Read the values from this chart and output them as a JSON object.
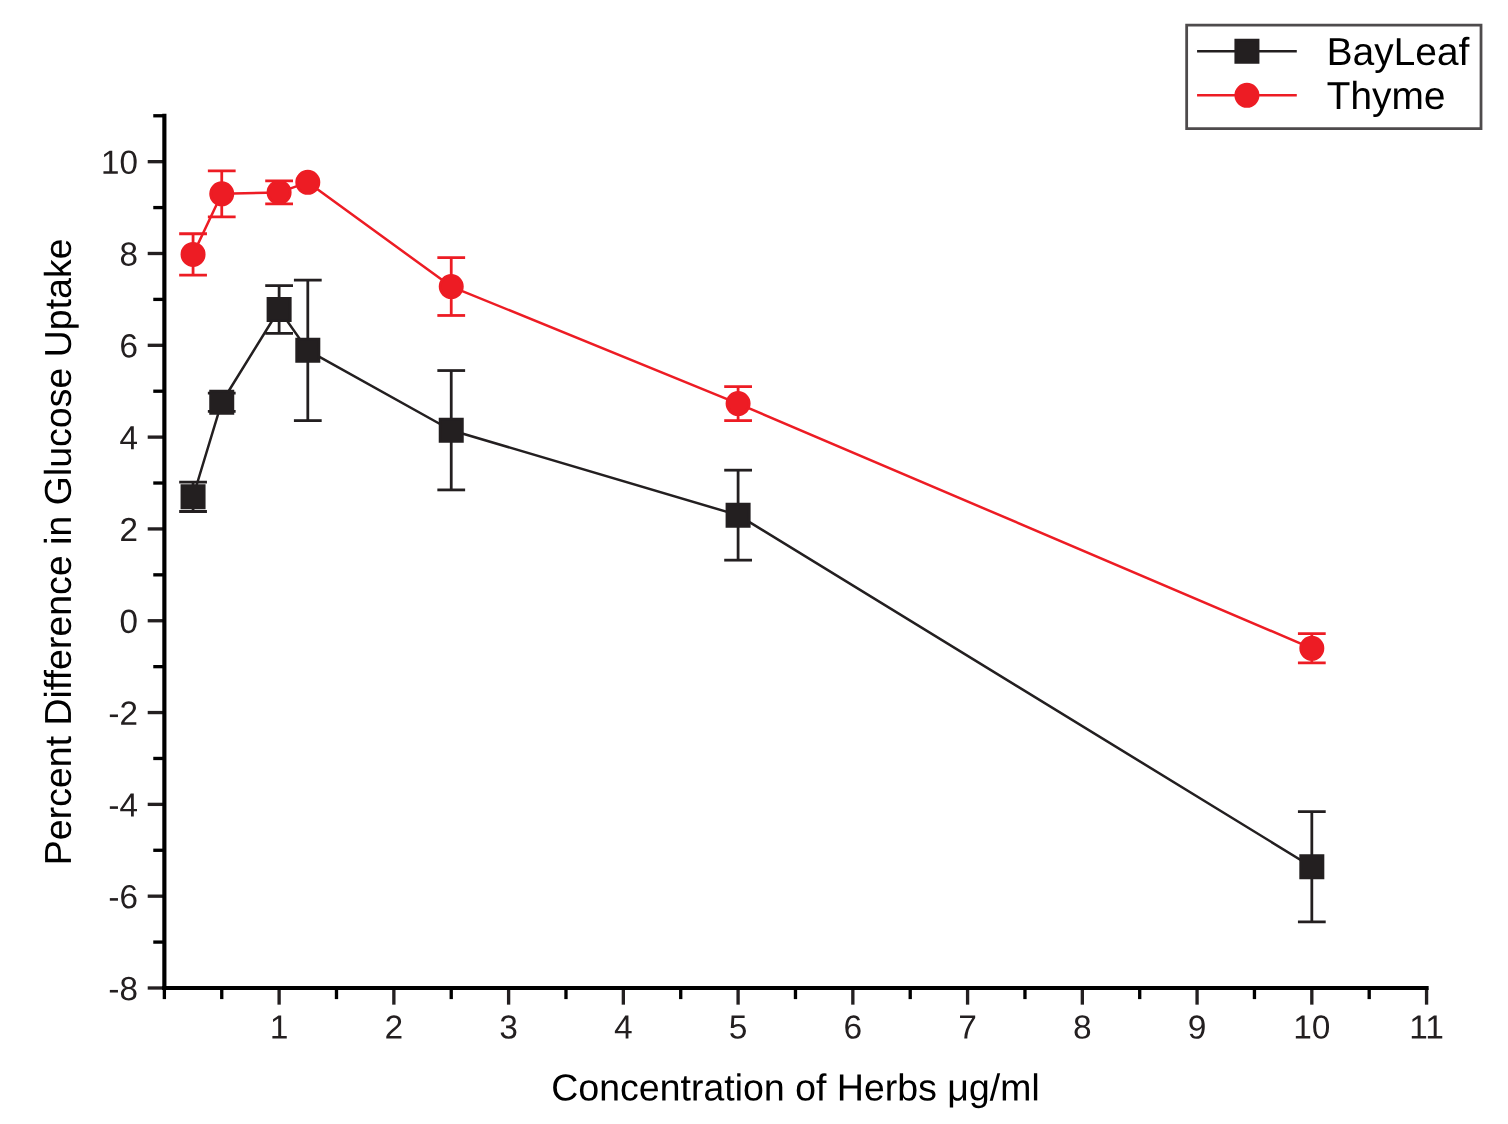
{
  "chart_data": {
    "type": "line",
    "xlabel": "Concentration of Herbs μg/ml",
    "ylabel": "Percent Difference in Glucose Uptake",
    "x": [
      0.25,
      0.5,
      1,
      1.25,
      2.5,
      5,
      10
    ],
    "series": [
      {
        "name": "BayLeaf",
        "color": "#231f20",
        "marker": "square",
        "values": [
          2.7,
          4.76,
          6.78,
          5.89,
          4.15,
          2.3,
          -5.36
        ],
        "errors": [
          0.32,
          0.2,
          0.52,
          1.53,
          1.3,
          0.98,
          1.2
        ]
      },
      {
        "name": "Thyme",
        "color": "#ed1c24",
        "marker": "circle",
        "values": [
          7.98,
          9.3,
          9.33,
          9.55,
          7.28,
          4.73,
          -0.6
        ],
        "errors": [
          0.45,
          0.5,
          0.25,
          null,
          0.63,
          0.37,
          0.32
        ]
      }
    ],
    "xlim": [
      0,
      11
    ],
    "xticks": [
      1,
      2,
      3,
      4,
      5,
      6,
      7,
      8,
      9,
      10,
      11
    ],
    "ylim": [
      -8,
      11
    ],
    "yticks": [
      -8,
      -6,
      -4,
      -2,
      0,
      2,
      4,
      6,
      8,
      10
    ],
    "grid": false,
    "legend": "top right",
    "line_style": "solid"
  }
}
